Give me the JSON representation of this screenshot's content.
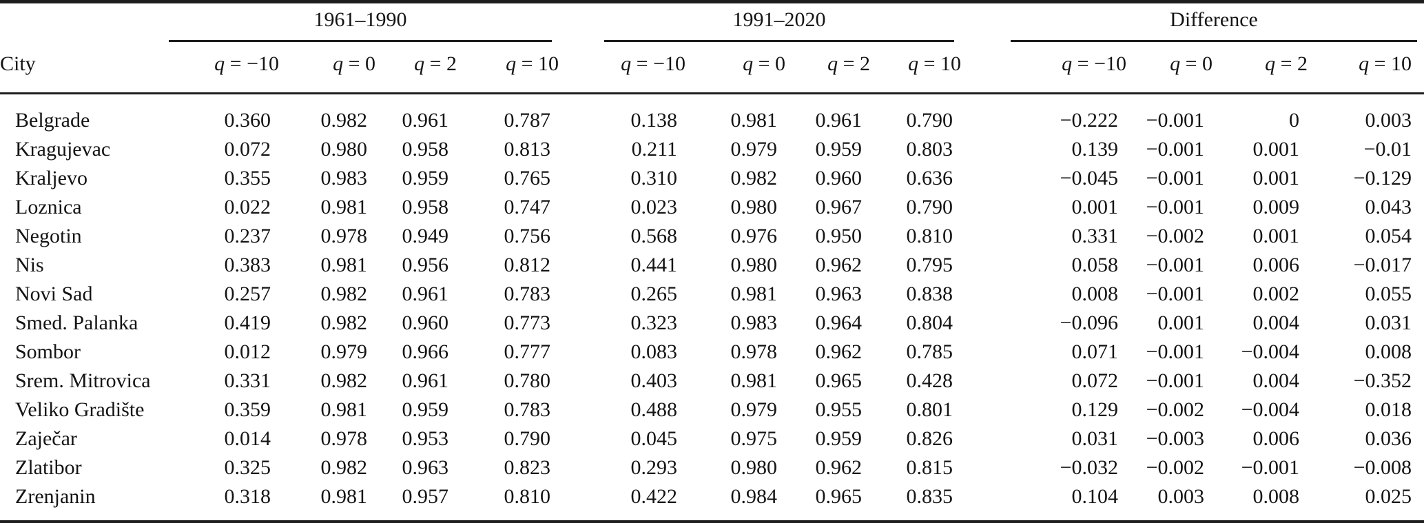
{
  "colors": {
    "text": "#141414",
    "rule": "#1d1d1d"
  },
  "table": {
    "city_header": "City",
    "groups": [
      {
        "label": "1961–1990"
      },
      {
        "label": "1991–2020"
      },
      {
        "label": "Difference"
      }
    ],
    "q_headers": [
      {
        "sym": "q",
        "eq": " = −10"
      },
      {
        "sym": "q",
        "eq": " = 0"
      },
      {
        "sym": "q",
        "eq": " = 2"
      },
      {
        "sym": "q",
        "eq": " = 10"
      }
    ],
    "rows": [
      {
        "city": "Belgrade",
        "values": [
          "0.360",
          "0.982",
          "0.961",
          "0.787",
          "0.138",
          "0.981",
          "0.961",
          "0.790",
          "−0.222",
          "−0.001",
          "0",
          "0.003"
        ]
      },
      {
        "city": "Kragujevac",
        "values": [
          "0.072",
          "0.980",
          "0.958",
          "0.813",
          "0.211",
          "0.979",
          "0.959",
          "0.803",
          "0.139",
          "−0.001",
          "0.001",
          "−0.01"
        ]
      },
      {
        "city": "Kraljevo",
        "values": [
          "0.355",
          "0.983",
          "0.959",
          "0.765",
          "0.310",
          "0.982",
          "0.960",
          "0.636",
          "−0.045",
          "−0.001",
          "0.001",
          "−0.129"
        ]
      },
      {
        "city": "Loznica",
        "values": [
          "0.022",
          "0.981",
          "0.958",
          "0.747",
          "0.023",
          "0.980",
          "0.967",
          "0.790",
          "0.001",
          "−0.001",
          "0.009",
          "0.043"
        ]
      },
      {
        "city": "Negotin",
        "values": [
          "0.237",
          "0.978",
          "0.949",
          "0.756",
          "0.568",
          "0.976",
          "0.950",
          "0.810",
          "0.331",
          "−0.002",
          "0.001",
          "0.054"
        ]
      },
      {
        "city": "Nis",
        "values": [
          "0.383",
          "0.981",
          "0.956",
          "0.812",
          "0.441",
          "0.980",
          "0.962",
          "0.795",
          "0.058",
          "−0.001",
          "0.006",
          "−0.017"
        ]
      },
      {
        "city": "Novi Sad",
        "values": [
          "0.257",
          "0.982",
          "0.961",
          "0.783",
          "0.265",
          "0.981",
          "0.963",
          "0.838",
          "0.008",
          "−0.001",
          "0.002",
          "0.055"
        ]
      },
      {
        "city": "Smed. Palanka",
        "values": [
          "0.419",
          "0.982",
          "0.960",
          "0.773",
          "0.323",
          "0.983",
          "0.964",
          "0.804",
          "−0.096",
          "0.001",
          "0.004",
          "0.031"
        ]
      },
      {
        "city": "Sombor",
        "values": [
          "0.012",
          "0.979",
          "0.966",
          "0.777",
          "0.083",
          "0.978",
          "0.962",
          "0.785",
          "0.071",
          "−0.001",
          "−0.004",
          "0.008"
        ]
      },
      {
        "city": "Srem. Mitrovica",
        "values": [
          "0.331",
          "0.982",
          "0.961",
          "0.780",
          "0.403",
          "0.981",
          "0.965",
          "0.428",
          "0.072",
          "−0.001",
          "0.004",
          "−0.352"
        ]
      },
      {
        "city": "Veliko Gradište",
        "values": [
          "0.359",
          "0.981",
          "0.959",
          "0.783",
          "0.488",
          "0.979",
          "0.955",
          "0.801",
          "0.129",
          "−0.002",
          "−0.004",
          "0.018"
        ]
      },
      {
        "city": "Zaječar",
        "values": [
          "0.014",
          "0.978",
          "0.953",
          "0.790",
          "0.045",
          "0.975",
          "0.959",
          "0.826",
          "0.031",
          "−0.003",
          "0.006",
          "0.036"
        ]
      },
      {
        "city": "Zlatibor",
        "values": [
          "0.325",
          "0.982",
          "0.963",
          "0.823",
          "0.293",
          "0.980",
          "0.962",
          "0.815",
          "−0.032",
          "−0.002",
          "−0.001",
          "−0.008"
        ]
      },
      {
        "city": "Zrenjanin",
        "values": [
          "0.318",
          "0.981",
          "0.957",
          "0.810",
          "0.422",
          "0.984",
          "0.965",
          "0.835",
          "0.104",
          "0.003",
          "0.008",
          "0.025"
        ]
      }
    ]
  }
}
